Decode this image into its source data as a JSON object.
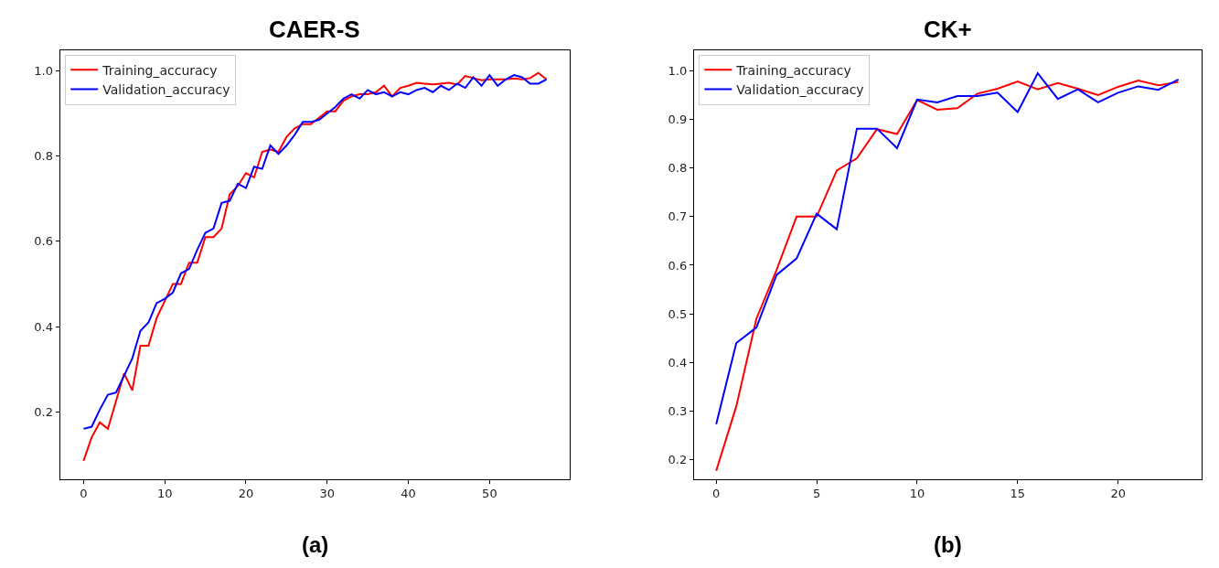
{
  "chart_data": [
    {
      "type": "line",
      "title": "CAER-S",
      "annotations": [
        "(a)"
      ],
      "x": [
        0,
        1,
        2,
        3,
        4,
        5,
        6,
        7,
        8,
        9,
        10,
        11,
        12,
        13,
        14,
        15,
        16,
        17,
        18,
        19,
        20,
        21,
        22,
        23,
        24,
        25,
        26,
        27,
        28,
        29,
        30,
        31,
        32,
        33,
        34,
        35,
        36,
        37,
        38,
        39,
        40,
        41,
        42,
        43,
        44,
        45,
        46,
        47,
        48,
        49,
        50,
        51,
        52,
        53,
        54,
        55,
        56,
        57
      ],
      "series": [
        {
          "name": "Training_accuracy",
          "color": "#ff0000",
          "values": [
            0.085,
            0.14,
            0.175,
            0.16,
            0.225,
            0.29,
            0.25,
            0.355,
            0.355,
            0.42,
            0.46,
            0.5,
            0.5,
            0.55,
            0.55,
            0.61,
            0.61,
            0.63,
            0.71,
            0.73,
            0.76,
            0.75,
            0.81,
            0.815,
            0.81,
            0.845,
            0.865,
            0.875,
            0.875,
            0.89,
            0.905,
            0.905,
            0.93,
            0.94,
            0.945,
            0.945,
            0.95,
            0.965,
            0.94,
            0.96,
            0.965,
            0.972,
            0.97,
            0.968,
            0.97,
            0.972,
            0.968,
            0.988,
            0.983,
            0.978,
            0.98,
            0.98,
            0.98,
            0.982,
            0.98,
            0.983,
            0.995,
            0.98
          ]
        },
        {
          "name": "Validation_accuracy",
          "color": "#0000ff",
          "values": [
            0.16,
            0.165,
            0.205,
            0.24,
            0.245,
            0.285,
            0.325,
            0.39,
            0.41,
            0.455,
            0.465,
            0.48,
            0.525,
            0.535,
            0.58,
            0.62,
            0.63,
            0.69,
            0.695,
            0.735,
            0.725,
            0.775,
            0.77,
            0.825,
            0.805,
            0.825,
            0.85,
            0.88,
            0.88,
            0.885,
            0.9,
            0.915,
            0.935,
            0.945,
            0.935,
            0.955,
            0.945,
            0.95,
            0.94,
            0.95,
            0.945,
            0.955,
            0.96,
            0.95,
            0.965,
            0.955,
            0.97,
            0.96,
            0.985,
            0.965,
            0.99,
            0.965,
            0.98,
            0.99,
            0.985,
            0.97,
            0.97,
            0.98
          ]
        }
      ],
      "xlim": [
        -2.9,
        59.9
      ],
      "xticks": [
        0,
        10,
        20,
        30,
        40,
        50
      ],
      "ylim": [
        0.042,
        1.048
      ],
      "yticks": [
        0.2,
        0.4,
        0.6,
        0.8,
        {
          "value": 1.0,
          "label": "1.0"
        }
      ],
      "legend": "top left",
      "line_style": "solid"
    },
    {
      "type": "line",
      "title": "CK+",
      "annotations": [
        "(b)"
      ],
      "x": [
        0,
        1,
        2,
        3,
        4,
        5,
        6,
        7,
        8,
        9,
        10,
        11,
        12,
        13,
        14,
        15,
        16,
        17,
        18,
        19,
        20,
        21,
        22,
        23
      ],
      "series": [
        {
          "name": "Training_accuracy",
          "color": "#ff0000",
          "values": [
            0.177,
            0.31,
            0.49,
            0.59,
            0.7,
            0.7,
            0.795,
            0.82,
            0.88,
            0.87,
            0.94,
            0.92,
            0.923,
            0.953,
            0.963,
            0.978,
            0.962,
            0.975,
            0.963,
            0.95,
            0.967,
            0.98,
            0.97,
            0.977
          ]
        },
        {
          "name": "Validation_accuracy",
          "color": "#0000ff",
          "values": [
            0.273,
            0.44,
            0.472,
            0.58,
            0.614,
            0.706,
            0.674,
            0.881,
            0.881,
            0.841,
            0.941,
            0.935,
            0.948,
            0.948,
            0.955,
            0.915,
            0.995,
            0.942,
            0.962,
            0.935,
            0.955,
            0.968,
            0.961,
            0.982
          ]
        }
      ],
      "xlim": [
        -1.11,
        24.15
      ],
      "xticks": [
        0,
        5,
        10,
        15,
        20
      ],
      "ylim": [
        0.16,
        1.042
      ],
      "yticks": [
        0.2,
        0.3,
        0.4,
        0.5,
        0.6,
        0.7,
        0.8,
        0.9,
        {
          "value": 1.0,
          "label": "1.0"
        }
      ],
      "legend": "top left",
      "line_style": "solid"
    }
  ]
}
